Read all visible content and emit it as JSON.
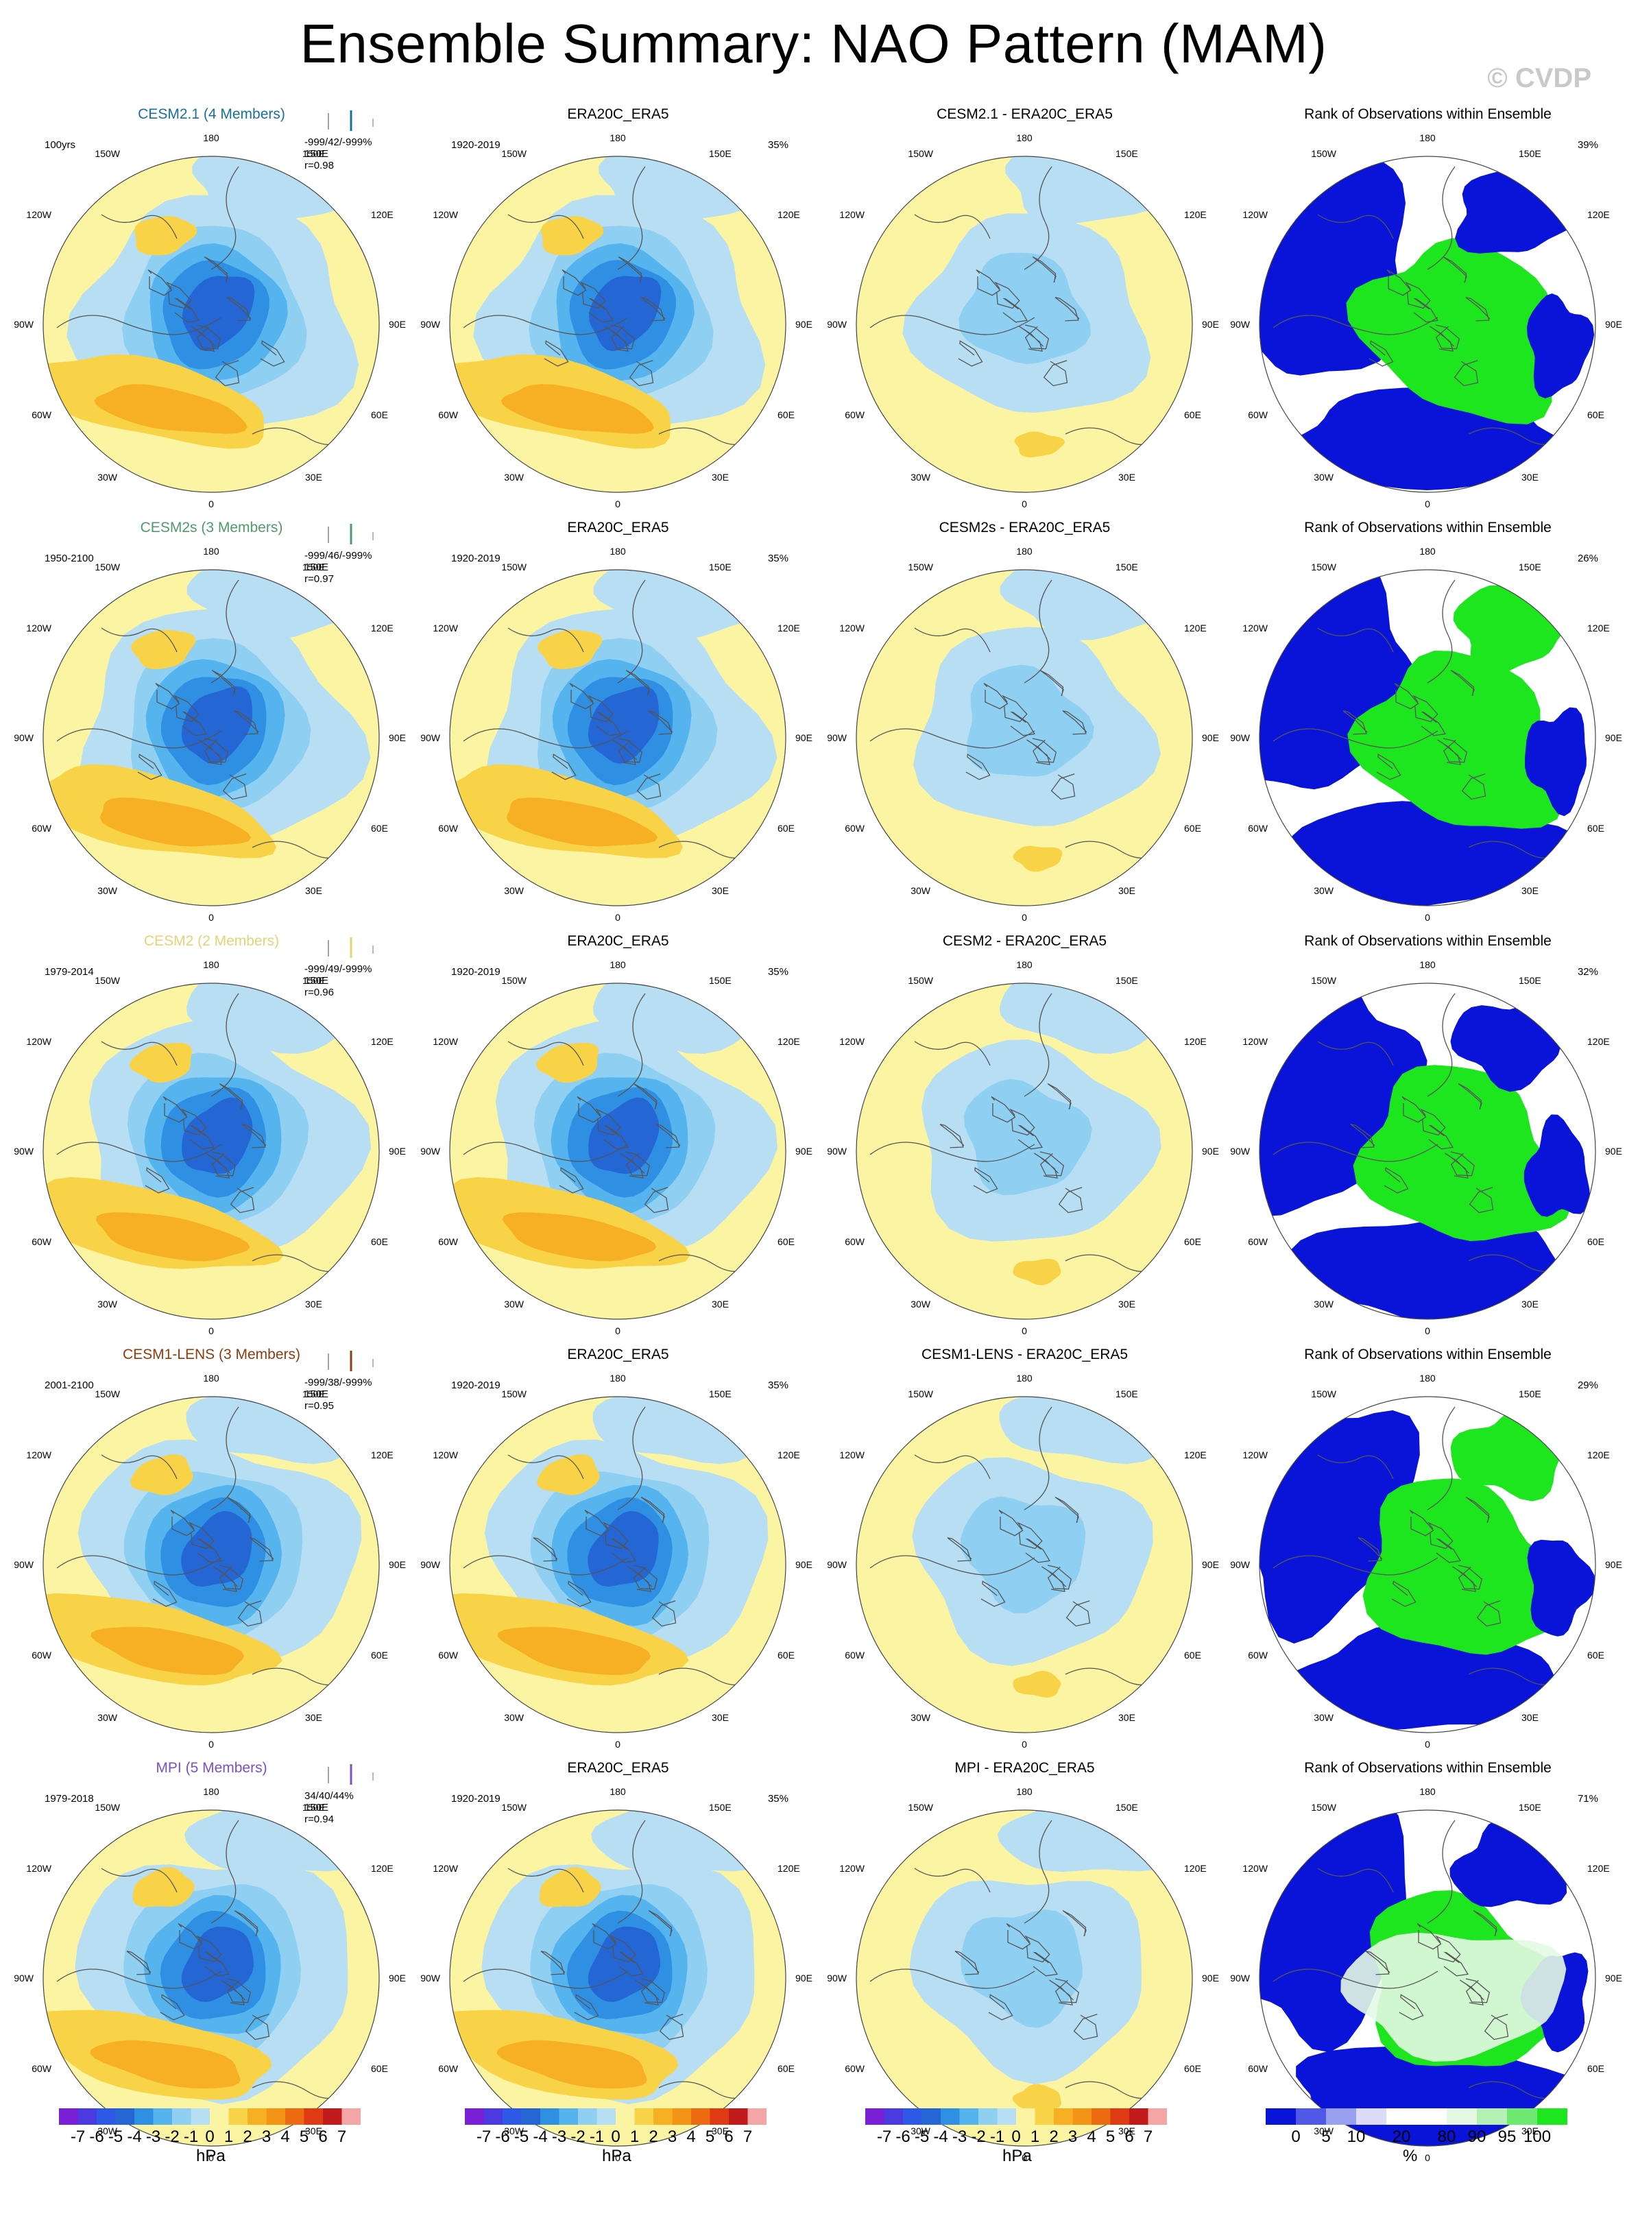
{
  "title": "Ensemble Summary: NAO Pattern (MAM)",
  "watermark": "© CVDP",
  "colors": {
    "yellow": "#fbf5a3",
    "lightblue": "#b8def3",
    "blue1": "#8fcff2",
    "blue2": "#55b4ee",
    "blue3": "#2f8fe3",
    "blue4": "#2467d4",
    "orange1": "#f9d347",
    "orange2": "#f7b023",
    "orange3": "#f39417",
    "rank_blue": "#0a14d8",
    "rank_green": "#1ee61e",
    "rank_pale": "#e4f8e4"
  },
  "rows": [
    {
      "model": "CESM2.1 (4 Members)",
      "model_color": "#1a6fa0",
      "period": "100yrs",
      "stats": [
        "-999/42/-999%",
        "150E",
        "r=0.98"
      ],
      "diff_title": "CESM2.1 - ERA20C_ERA5",
      "rank_pct": "39%"
    },
    {
      "model": "CESM2s (3 Members)",
      "model_color": "#4f9a6a",
      "period": "1950-2100",
      "stats": [
        "-999/46/-999%",
        "150E",
        "r=0.97"
      ],
      "diff_title": "CESM2s - ERA20C_ERA5",
      "rank_pct": "26%"
    },
    {
      "model": "CESM2 (2 Members)",
      "model_color": "#e6d277",
      "period": "1979-2014",
      "stats": [
        "-999/49/-999%",
        "150E",
        "r=0.96"
      ],
      "diff_title": "CESM2 - ERA20C_ERA5",
      "rank_pct": "32%"
    },
    {
      "model": "CESM1-LENS (3 Members)",
      "model_color": "#8a3d0e",
      "period": "2001-2100",
      "stats": [
        "-999/38/-999%",
        "150E",
        "r=0.95"
      ],
      "diff_title": "CESM1-LENS - ERA20C_ERA5",
      "rank_pct": "29%"
    },
    {
      "model": "MPI (5 Members)",
      "model_color": "#7b4fc8",
      "period": "1979-2018",
      "stats": [
        "34/40/44%",
        "150E",
        "r=0.94"
      ],
      "diff_title": "MPI - ERA20C_ERA5",
      "rank_pct": "71%"
    }
  ],
  "obs": {
    "title": "ERA20C_ERA5",
    "period": "1920-2019",
    "pct": "35%"
  },
  "rank_title": "Rank of Observations within Ensemble",
  "lon_labels": [
    "180",
    "150E",
    "120E",
    "90E",
    "60E",
    "30E",
    "0",
    "30W",
    "60W",
    "90W",
    "120W",
    "150W"
  ],
  "colorbar": {
    "labels": [
      "-7",
      "-6",
      "-5",
      "-4",
      "-3",
      "-2",
      "-1",
      "0",
      "1",
      "2",
      "3",
      "4",
      "5",
      "6",
      "7"
    ],
    "unit": "hPa",
    "colors": [
      "#7a1fd6",
      "#4a3ae0",
      "#2e58e6",
      "#2467d4",
      "#2f8fe3",
      "#55b4ee",
      "#8fcff2",
      "#b8def3",
      "#fbf5a3",
      "#f9d347",
      "#f7b023",
      "#f39417",
      "#eb6a12",
      "#de3a14",
      "#c01a1a",
      "#f4a6a6"
    ]
  },
  "rank_colorbar": {
    "labels": [
      "0",
      "5",
      "10",
      "20",
      "80",
      "90",
      "95",
      "100"
    ],
    "unit": "%",
    "colors": [
      "#0a14d8",
      "#5058e8",
      "#9aa0f0",
      "#dcdcf8",
      "#ffffff",
      "#ffffff",
      "#e4f8e4",
      "#b4f0b4",
      "#6ee86e",
      "#1ee61e"
    ]
  }
}
